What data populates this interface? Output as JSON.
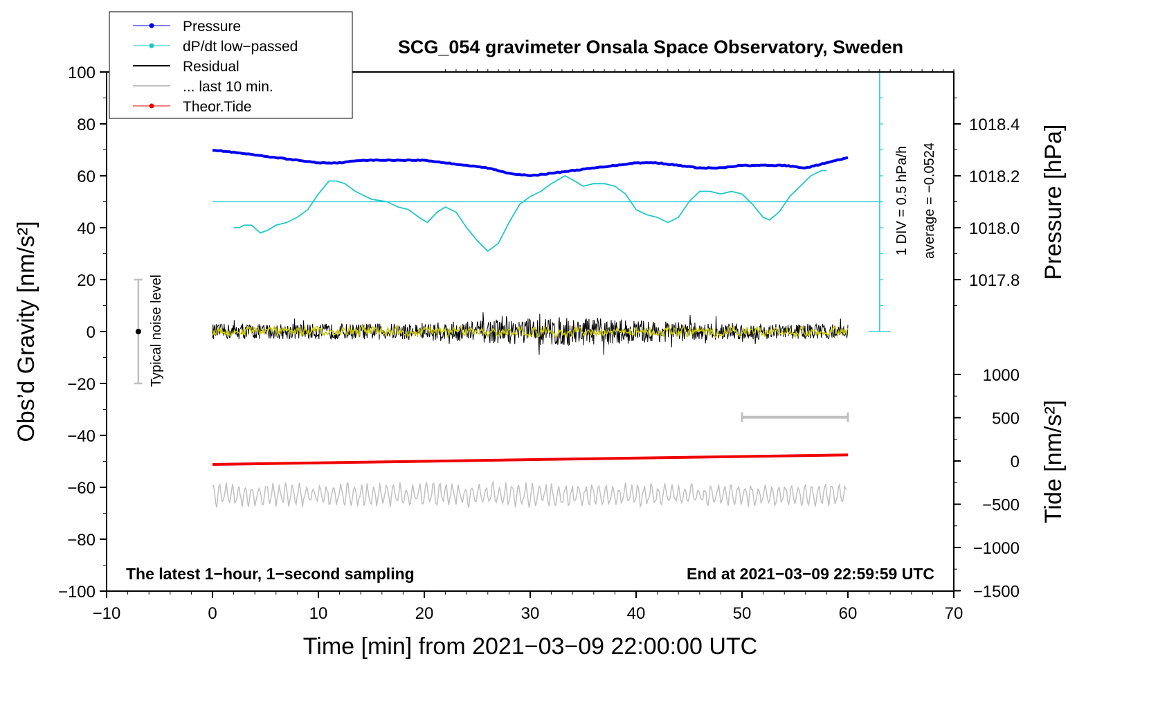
{
  "chart_data": {
    "type": "line",
    "title": "SCG_054 gravimeter Onsala Space Observatory, Sweden",
    "xlabel": "Time [min] from 2021−03−09 22:00:00 UTC",
    "ylabel_left": "Obs’d Gravity [nm/s²]",
    "ylabel_right_pressure": "Pressure [hPa]",
    "ylabel_right_tide": "Tide [nm/s²]",
    "xlim": [
      -10,
      70
    ],
    "ylim": [
      -100,
      100
    ],
    "pressure_lim": [
      1017.6,
      1018.6
    ],
    "tide_lim": [
      -1500,
      1500
    ],
    "x_ticks": [
      "−10",
      "0",
      "10",
      "20",
      "30",
      "40",
      "50",
      "60",
      "70"
    ],
    "x_tick_values": [
      -10,
      0,
      10,
      20,
      30,
      40,
      50,
      60,
      70
    ],
    "y_ticks": [
      "−100",
      "−80",
      "−60",
      "−40",
      "−20",
      "0",
      "20",
      "40",
      "60",
      "80",
      "100"
    ],
    "y_tick_values": [
      -100,
      -80,
      -60,
      -40,
      -20,
      0,
      20,
      40,
      60,
      80,
      100
    ],
    "pressure_ticks": [
      "1017.8",
      "1018.0",
      "1018.2",
      "1018.4"
    ],
    "pressure_tick_values": [
      1017.8,
      1018.0,
      1018.2,
      1018.4
    ],
    "tide_ticks": [
      "1000",
      "500",
      "0",
      "−500",
      "−1000",
      "−1500"
    ],
    "tide_tick_values": [
      1000,
      500,
      0,
      -500,
      -1000,
      -1500
    ],
    "legend": {
      "position": "top-left",
      "items": [
        {
          "label": "Pressure",
          "color": "#0000ee",
          "marker": true
        },
        {
          "label": "dP/dt low−passed",
          "color": "#20c8c8",
          "marker": true
        },
        {
          "label": "Residual",
          "color": "#000000",
          "marker": false
        },
        {
          "label": "... last 10 min.",
          "color": "#c0c0c0",
          "marker": false
        },
        {
          "label": "Theor.Tide",
          "color": "#ee0000",
          "marker": true
        }
      ]
    },
    "series": [
      {
        "name": "Pressure",
        "axis": "pressure",
        "color": "#0000ee",
        "x": [
          0,
          2,
          4,
          6,
          8,
          10,
          12,
          14,
          16,
          18,
          20,
          22,
          24,
          26,
          28,
          30,
          32,
          34,
          36,
          38,
          40,
          42,
          44,
          46,
          48,
          50,
          52,
          54,
          56,
          58,
          60
        ],
        "values": [
          1018.3,
          1018.29,
          1018.28,
          1018.27,
          1018.26,
          1018.25,
          1018.25,
          1018.26,
          1018.26,
          1018.26,
          1018.26,
          1018.25,
          1018.24,
          1018.23,
          1018.21,
          1018.2,
          1018.21,
          1018.22,
          1018.23,
          1018.24,
          1018.25,
          1018.25,
          1018.24,
          1018.23,
          1018.23,
          1018.24,
          1018.24,
          1018.24,
          1018.23,
          1018.25,
          1018.27
        ]
      },
      {
        "name": "dP/dt low−passed",
        "axis": "gravity",
        "color": "#20c8c8",
        "x": [
          2,
          2.5,
          3,
          3.7,
          4.5,
          5.2,
          6,
          7,
          8,
          9,
          10,
          11,
          11.7,
          12.5,
          13.5,
          15,
          16.5,
          17.5,
          18.5,
          19.5,
          20.3,
          21.2,
          22,
          23,
          24,
          25,
          26,
          27,
          28,
          29,
          30,
          31,
          32,
          33.3,
          34.2,
          35,
          36,
          37,
          38,
          39,
          40,
          41,
          42,
          43,
          44,
          45,
          46,
          47,
          48,
          49,
          50,
          51,
          52,
          52.6,
          53.5,
          54.5,
          55.5,
          56.5,
          57.5,
          58
        ],
        "values": [
          40,
          40,
          41,
          41,
          38,
          39,
          41,
          42,
          44,
          47,
          53,
          58,
          58,
          57,
          54,
          51,
          50,
          48,
          47,
          44,
          42,
          46,
          48,
          46,
          40,
          35,
          31,
          34,
          42,
          49,
          52,
          54,
          57,
          60,
          58,
          56,
          57,
          57,
          56,
          53,
          47,
          45,
          44,
          42,
          44,
          50,
          54,
          54,
          53,
          54,
          53,
          49,
          44,
          43,
          46,
          52,
          56,
          60,
          62,
          62
        ]
      },
      {
        "name": "Residual",
        "axis": "gravity",
        "color": "#000000",
        "x_range": [
          0,
          60
        ],
        "amplitude": 5,
        "max_excursion": 13
      },
      {
        "name": "Residual smoothed",
        "axis": "gravity",
        "color": "#c8c800",
        "x_range": [
          0,
          60
        ],
        "amplitude": 1.5
      },
      {
        "name": "... last 10 min.",
        "axis": "gravity",
        "color": "#c0c0c0",
        "x_range": [
          0,
          60
        ],
        "offset": -63,
        "amplitude": 3
      },
      {
        "name": "Theor.Tide",
        "axis": "tide",
        "color": "#ee0000",
        "x": [
          0,
          60
        ],
        "values": [
          -40,
          70
        ]
      }
    ],
    "annotations": {
      "noise_bar_label": "Typical noise level",
      "noise_bar": {
        "x": -7,
        "center": 0,
        "half_range": 20
      },
      "div_text": "1 DIV = 0.5 hPa/h",
      "average_text": "average = −0.0524",
      "dpdt_zero_level": 50,
      "scale_axis_x": 63,
      "scale_axis_range": [
        0,
        100
      ],
      "scale_bar": {
        "x_start": 50,
        "x_end": 60,
        "y": -33
      },
      "bottom_left_text": "The latest 1−hour, 1−second sampling",
      "bottom_right_text": "End at 2021−03−09 22:59:59 UTC"
    }
  }
}
